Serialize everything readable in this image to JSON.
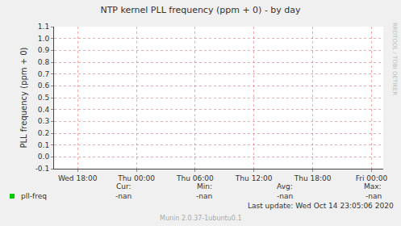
{
  "chart_data": {
    "type": "line",
    "title": "NTP kernel PLL frequency (ppm + 0) - by day",
    "y_label": "PLL frequency (ppm + 0)",
    "categories": [
      "Wed 18:00",
      "Thu 00:00",
      "Thu 06:00",
      "Thu 12:00",
      "Thu 18:00",
      "Fri 00:00"
    ],
    "series": [
      {
        "name": "pll-freq",
        "color": "#00cc00",
        "values": [
          null,
          null,
          null,
          null,
          null,
          null
        ],
        "summary": [
          "-nan",
          "-nan",
          "-nan",
          "-nan"
        ]
      }
    ],
    "summary_labels": [
      "Cur:",
      "Min:",
      "Avg:",
      "Max:"
    ],
    "ylim": [
      -0.1,
      1.1
    ],
    "yticks": [
      -0.1,
      {
        "value": 0,
        "label": "0.0"
      },
      0.1,
      0.2,
      0.3,
      0.4,
      0.5,
      0.6,
      0.7,
      0.8,
      0.9,
      {
        "value": 1,
        "label": "1.0"
      },
      1.1
    ],
    "grid": true,
    "legend": "bottom",
    "last_update": "Last update: Wed Oct 14 23:05:06 2020",
    "credit": "Munin 2.0.37-1ubuntu0.1",
    "watermark": "RRDTOOL / TOBI OETIKER"
  }
}
